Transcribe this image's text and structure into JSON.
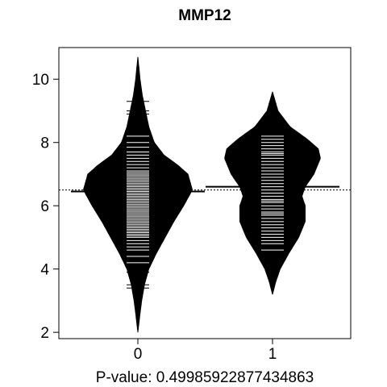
{
  "chart_data": {
    "type": "beanplot",
    "title": "MMP12",
    "xlabel": "P-value: 0.49985922877434863",
    "ylabel": "",
    "ylim": [
      1.8,
      11.0
    ],
    "yticks": [
      2,
      4,
      6,
      8,
      10
    ],
    "categories": [
      "0",
      "1"
    ],
    "grid": false,
    "legend": "none",
    "colors": {
      "fill": "#000000",
      "lines": "#ffffff",
      "axis": "#000000"
    },
    "overall_mean": 6.5,
    "series": [
      {
        "category": "0",
        "mean": 6.45,
        "min": 2.0,
        "max": 10.7,
        "density": [
          [
            2.0,
            0.0
          ],
          [
            2.6,
            0.02
          ],
          [
            3.0,
            0.035
          ],
          [
            3.5,
            0.06
          ],
          [
            4.0,
            0.1
          ],
          [
            4.5,
            0.17
          ],
          [
            5.0,
            0.25
          ],
          [
            5.5,
            0.33
          ],
          [
            6.0,
            0.42
          ],
          [
            6.5,
            0.5
          ],
          [
            7.0,
            0.46
          ],
          [
            7.3,
            0.36
          ],
          [
            7.6,
            0.24
          ],
          [
            8.0,
            0.15
          ],
          [
            8.5,
            0.1
          ],
          [
            9.0,
            0.07
          ],
          [
            9.5,
            0.04
          ],
          [
            10.0,
            0.02
          ],
          [
            10.7,
            0.0
          ]
        ],
        "points": [
          3.4,
          3.5,
          3.9,
          4.2,
          4.4,
          4.6,
          4.7,
          4.8,
          4.9,
          5.0,
          5.05,
          5.1,
          5.15,
          5.2,
          5.25,
          5.3,
          5.35,
          5.4,
          5.45,
          5.5,
          5.55,
          5.6,
          5.65,
          5.7,
          5.75,
          5.8,
          5.85,
          5.9,
          5.95,
          6.0,
          6.05,
          6.1,
          6.15,
          6.2,
          6.25,
          6.3,
          6.35,
          6.4,
          6.45,
          6.5,
          6.55,
          6.6,
          6.65,
          6.7,
          6.75,
          6.8,
          6.85,
          6.9,
          6.95,
          7.0,
          7.05,
          7.1,
          7.2,
          7.3,
          7.4,
          7.5,
          7.6,
          7.7,
          7.85,
          8.0,
          8.2,
          8.4,
          8.9,
          9.0,
          9.3
        ]
      },
      {
        "category": "1",
        "mean": 6.6,
        "min": 3.2,
        "max": 9.6,
        "density": [
          [
            3.2,
            0.0
          ],
          [
            3.6,
            0.03
          ],
          [
            4.0,
            0.07
          ],
          [
            4.5,
            0.15
          ],
          [
            5.0,
            0.24
          ],
          [
            5.5,
            0.3
          ],
          [
            6.0,
            0.3
          ],
          [
            6.3,
            0.27
          ],
          [
            6.6,
            0.3
          ],
          [
            7.0,
            0.38
          ],
          [
            7.5,
            0.44
          ],
          [
            7.8,
            0.42
          ],
          [
            8.1,
            0.32
          ],
          [
            8.5,
            0.16
          ],
          [
            9.0,
            0.05
          ],
          [
            9.6,
            0.0
          ]
        ],
        "points": [
          4.6,
          4.8,
          4.9,
          5.0,
          5.1,
          5.2,
          5.3,
          5.4,
          5.5,
          5.6,
          5.7,
          5.75,
          5.8,
          5.9,
          6.0,
          6.1,
          6.15,
          6.2,
          6.3,
          6.4,
          6.5,
          6.6,
          6.7,
          6.8,
          6.9,
          7.0,
          7.1,
          7.2,
          7.3,
          7.4,
          7.5,
          7.6,
          7.65,
          7.7,
          7.8,
          7.9,
          8.0,
          8.1,
          8.2
        ]
      }
    ]
  }
}
